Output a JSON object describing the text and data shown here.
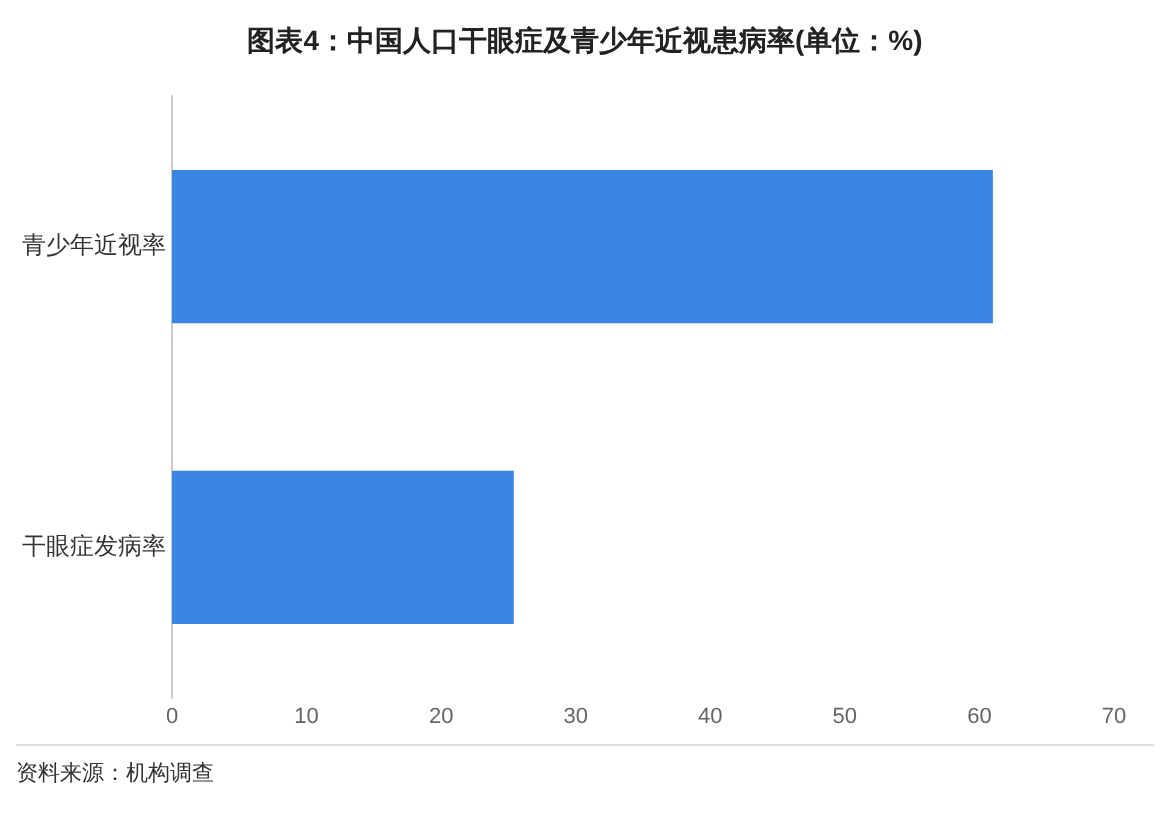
{
  "chart_data": {
    "type": "bar",
    "orientation": "horizontal",
    "title": "图表4：中国人口干眼症及青少年近视患病率(单位：%)",
    "categories": [
      "青少年近视率",
      "干眼症发病率"
    ],
    "values": [
      61,
      25.4
    ],
    "color": "#3a85e6",
    "xlim": [
      0,
      70
    ],
    "xticks": [
      0,
      10,
      20,
      30,
      40,
      50,
      60,
      70
    ],
    "grid": false,
    "legend": false,
    "annotations": [
      "资料来源：机构调查"
    ]
  }
}
